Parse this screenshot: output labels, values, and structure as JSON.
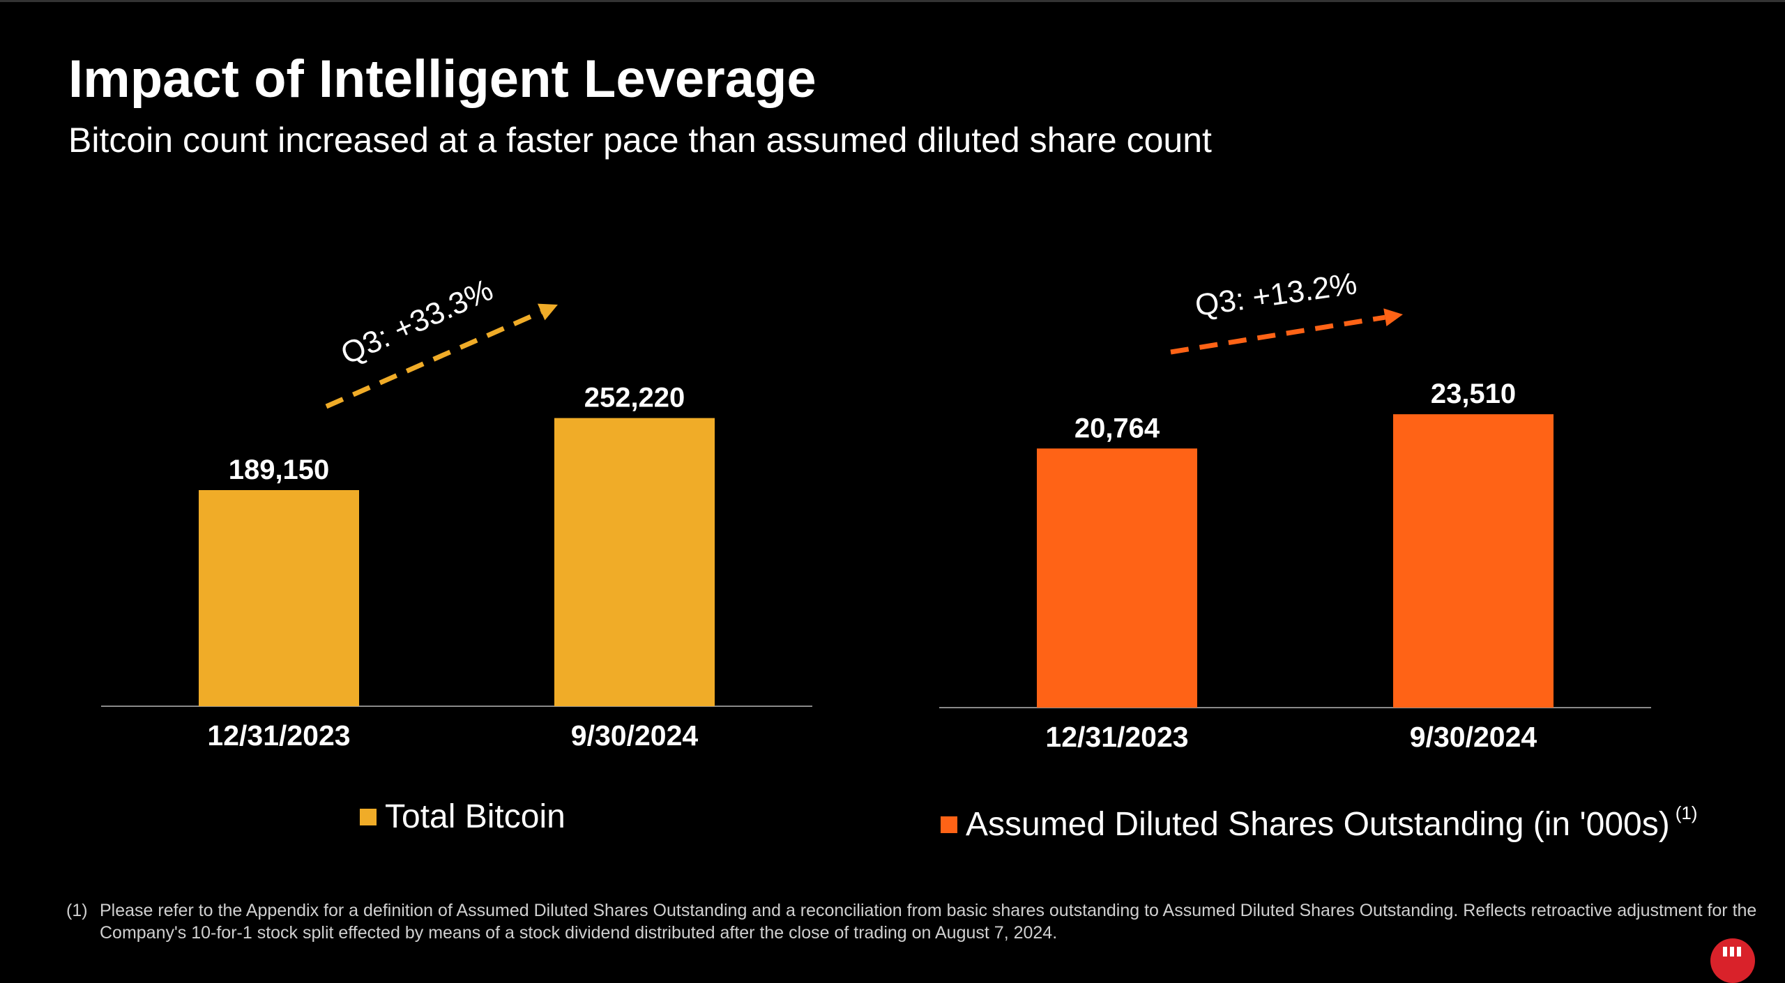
{
  "title": "Impact of Intelligent Leverage",
  "subtitle": "Bitcoin count increased at a faster pace than assumed diluted share count",
  "chart_data": [
    {
      "type": "bar",
      "categories": [
        "12/31/2023",
        "9/30/2024"
      ],
      "values": [
        189150,
        252220
      ],
      "value_labels": [
        "189,150",
        "252,220"
      ],
      "series_name": "Total Bitcoin",
      "color": "#F0AC28",
      "annotation": "Q3: +33.3%",
      "ylim": [
        0,
        360000
      ]
    },
    {
      "type": "bar",
      "categories": [
        "12/31/2023",
        "9/30/2024"
      ],
      "values": [
        20764,
        23510
      ],
      "value_labels": [
        "20,764",
        "23,510"
      ],
      "series_name": "Assumed Diluted Shares Outstanding (in '000s)",
      "series_footnote": "(1)",
      "color": "#FF6316",
      "annotation": "Q3: +13.2%",
      "ylim": [
        0,
        32960
      ]
    }
  ],
  "footnote": {
    "number": "(1)",
    "text": "Please refer to the Appendix for a definition of Assumed Diluted Shares Outstanding and a reconciliation from basic shares outstanding to Assumed Diluted Shares Outstanding. Reflects retroactive adjustment for the Company's 10-for-1 stock split effected by means of a stock dividend distributed after the close of trading on August 7, 2024."
  }
}
